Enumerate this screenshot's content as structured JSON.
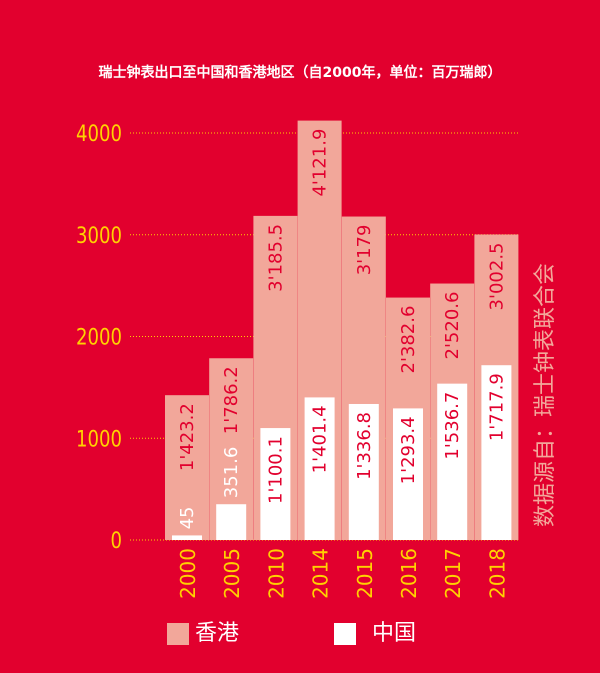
{
  "chart_data": {
    "type": "bar",
    "title": "瑞士钟表出口至中国和香港地区（自2000年，单位：百万瑞郎）",
    "categories": [
      "2000",
      "2005",
      "2010",
      "2014",
      "2015",
      "2016",
      "2017",
      "2018"
    ],
    "series": [
      {
        "name": "香港",
        "color": "#f2a79a",
        "values": [
          1423.2,
          1786.2,
          3185.5,
          4121.9,
          3179,
          2382.6,
          2520.6,
          3002.5
        ],
        "labels": [
          "1'423.2",
          "1'786.2",
          "3'185.5",
          "4'121.9",
          "3'179",
          "2'382.6",
          "2'520.6",
          "3'002.5"
        ]
      },
      {
        "name": "中国",
        "color": "#ffffff",
        "values": [
          45,
          351.6,
          1100.1,
          1401.4,
          1336.8,
          1293.4,
          1536.7,
          1717.9
        ],
        "labels": [
          "45",
          "351.6",
          "1'100.1",
          "1'401.4",
          "1'336.8",
          "1'293.4",
          "1'536.7",
          "1'717.9"
        ]
      }
    ],
    "yticks": [
      "0",
      "1000",
      "2000",
      "3000",
      "4000"
    ],
    "ylim": [
      0,
      4000
    ],
    "grid": true,
    "legend_position": "bottom",
    "source": "数据源自：瑞士钟表联合会"
  },
  "colors": {
    "background": "#e2002e",
    "axis_text": "#ffd200",
    "grid": "#ffd200",
    "hk_label_text": "#e2002e",
    "cn_label_text": "#e2002e"
  }
}
